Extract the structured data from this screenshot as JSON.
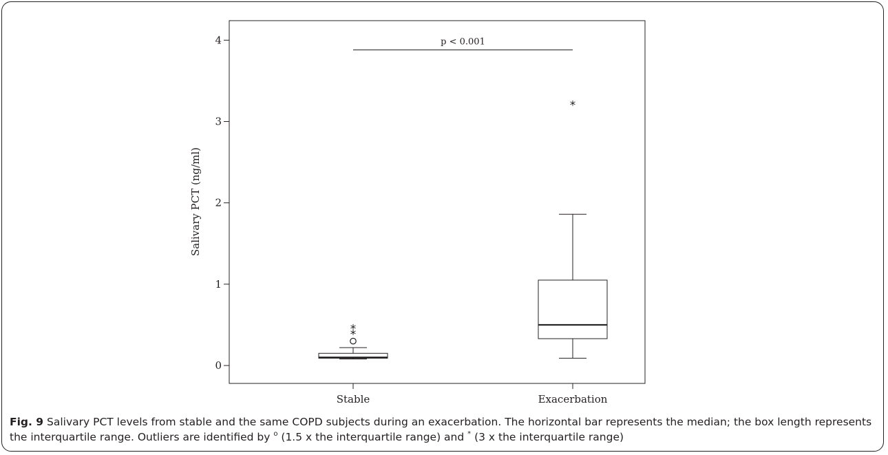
{
  "chart_data": {
    "type": "box",
    "ylabel": "Salivary PCT (ng/ml)",
    "xlabel": "",
    "ylim": [
      -0.22,
      4.24
    ],
    "yticks": [
      0,
      1,
      2,
      3,
      4
    ],
    "ytick_labels": [
      "0",
      "1",
      "2",
      "3",
      "4"
    ],
    "categories": [
      "Stable",
      "Exacerbation"
    ],
    "boxes": [
      {
        "category": "Stable",
        "whisker_low": 0.08,
        "q1": 0.09,
        "median": 0.1,
        "q3": 0.15,
        "whisker_high": 0.22,
        "outliers_mild": [
          0.3
        ],
        "outliers_extreme": [
          0.4,
          0.47
        ]
      },
      {
        "category": "Exacerbation",
        "whisker_low": 0.09,
        "q1": 0.33,
        "median": 0.5,
        "q3": 1.05,
        "whisker_high": 1.86,
        "outliers_mild": [],
        "outliers_extreme": [
          3.22
        ]
      }
    ],
    "annotations": [
      {
        "text": "p < 0.001",
        "type": "significance-bar",
        "y": 3.88,
        "from": "Stable",
        "to": "Exacerbation"
      }
    ],
    "grid": false,
    "legend": "none"
  },
  "caption": {
    "label": "Fig. 9",
    "text_1": " Salivary PCT levels from stable and the same COPD subjects during an exacerbation. The horizontal bar represents the median; the box length represents the interquartile range. Outliers are identified by ",
    "mild_symbol": "o",
    "text_2": " (1.5 x the interquartile range) and ",
    "extreme_symbol": "*",
    "text_3": " (3 x the interquartile range)"
  },
  "colors": {
    "ink": "#231f20",
    "background": "#ffffff"
  }
}
